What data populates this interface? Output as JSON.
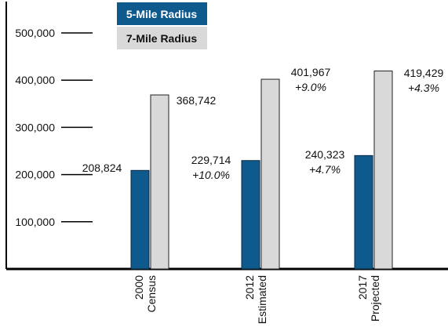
{
  "chart_data": {
    "type": "bar",
    "categories": [
      [
        "2000",
        "Census"
      ],
      [
        "2012",
        "Estimated"
      ],
      [
        "2017",
        "Projected"
      ]
    ],
    "series": [
      {
        "name": "5-Mile Radius",
        "color": "#0f5a8c",
        "values": [
          208824,
          229714,
          240323
        ],
        "value_labels": [
          "208,824",
          "229,714",
          "240,323"
        ],
        "pct_labels": [
          "",
          "+10.0%",
          "+4.7%"
        ]
      },
      {
        "name": "7-Mile Radius",
        "color": "#d9d9d9",
        "values": [
          368742,
          401967,
          419429
        ],
        "value_labels": [
          "368,742",
          "401,967",
          "419,429"
        ],
        "pct_labels": [
          "",
          "+9.0%",
          "+4.3%"
        ]
      }
    ],
    "yticks": [
      100000,
      200000,
      300000,
      400000,
      500000
    ],
    "ytick_labels": [
      "100,000",
      "200,000",
      "300,000",
      "400,000",
      "500,000"
    ],
    "ylim": [
      0,
      520000
    ],
    "grid": false,
    "legend_position": "top-center"
  }
}
